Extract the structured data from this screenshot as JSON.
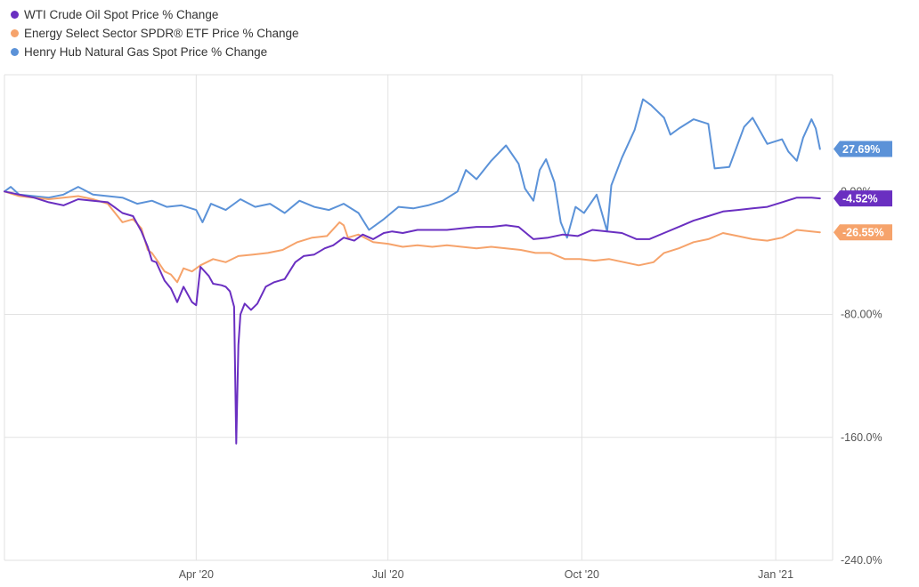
{
  "colors": {
    "wti": "#6a2fc1",
    "energy": "#f6a36b",
    "henry": "#5b92d8",
    "grid": "#e2e2e2",
    "zero_line": "#cfcfcf",
    "axis_text": "#555555"
  },
  "chart_data": {
    "type": "line",
    "title": "",
    "xlabel": "",
    "ylabel": "",
    "x_tick_labels": [
      "Apr '20",
      "Jul '20",
      "Oct '20",
      "Jan '21"
    ],
    "y_tick_labels": [
      "0.00%",
      "-80.00%",
      "-160.0%",
      "-240.0%"
    ],
    "y_ticks": [
      0,
      -80,
      -160,
      -240
    ],
    "ylim": [
      -240,
      76
    ],
    "xlim": [
      "2020-01-01",
      "2021-01-28"
    ],
    "x_ticks": [
      "2020-04-01",
      "2020-07-01",
      "2020-10-01",
      "2021-01-01"
    ],
    "grid": true,
    "legend_position": "top-left",
    "series": [
      {
        "name": "WTI Crude Oil Spot Price % Change",
        "color_key": "wti",
        "end_label": "-4.52%",
        "points": [
          [
            "2020-01-01",
            0
          ],
          [
            "2020-01-08",
            -2
          ],
          [
            "2020-01-15",
            -4
          ],
          [
            "2020-01-22",
            -7
          ],
          [
            "2020-01-29",
            -9
          ],
          [
            "2020-02-05",
            -5
          ],
          [
            "2020-02-12",
            -6
          ],
          [
            "2020-02-19",
            -7
          ],
          [
            "2020-02-26",
            -14
          ],
          [
            "2020-03-02",
            -16
          ],
          [
            "2020-03-06",
            -26
          ],
          [
            "2020-03-09",
            -36
          ],
          [
            "2020-03-11",
            -45
          ],
          [
            "2020-03-13",
            -46
          ],
          [
            "2020-03-17",
            -58
          ],
          [
            "2020-03-20",
            -63
          ],
          [
            "2020-03-23",
            -72
          ],
          [
            "2020-03-26",
            -62
          ],
          [
            "2020-03-30",
            -72
          ],
          [
            "2020-04-01",
            -74
          ],
          [
            "2020-04-03",
            -49
          ],
          [
            "2020-04-07",
            -55
          ],
          [
            "2020-04-09",
            -60
          ],
          [
            "2020-04-13",
            -61
          ],
          [
            "2020-04-15",
            -62
          ],
          [
            "2020-04-17",
            -65
          ],
          [
            "2020-04-19",
            -75
          ],
          [
            "2020-04-20",
            -164
          ],
          [
            "2020-04-21",
            -100
          ],
          [
            "2020-04-22",
            -80
          ],
          [
            "2020-04-24",
            -73
          ],
          [
            "2020-04-27",
            -77
          ],
          [
            "2020-04-30",
            -73
          ],
          [
            "2020-05-04",
            -62
          ],
          [
            "2020-05-08",
            -59
          ],
          [
            "2020-05-13",
            -57
          ],
          [
            "2020-05-18",
            -46
          ],
          [
            "2020-05-22",
            -42
          ],
          [
            "2020-05-27",
            -41
          ],
          [
            "2020-06-01",
            -37
          ],
          [
            "2020-06-05",
            -35
          ],
          [
            "2020-06-10",
            -30
          ],
          [
            "2020-06-15",
            -32
          ],
          [
            "2020-06-19",
            -28
          ],
          [
            "2020-06-24",
            -31
          ],
          [
            "2020-06-29",
            -27
          ],
          [
            "2020-07-03",
            -26
          ],
          [
            "2020-07-08",
            -27
          ],
          [
            "2020-07-15",
            -25
          ],
          [
            "2020-07-22",
            -25
          ],
          [
            "2020-07-29",
            -25
          ],
          [
            "2020-08-05",
            -24
          ],
          [
            "2020-08-12",
            -23
          ],
          [
            "2020-08-19",
            -23
          ],
          [
            "2020-08-26",
            -22
          ],
          [
            "2020-09-01",
            -23
          ],
          [
            "2020-09-08",
            -31
          ],
          [
            "2020-09-15",
            -30
          ],
          [
            "2020-09-22",
            -28
          ],
          [
            "2020-09-29",
            -29
          ],
          [
            "2020-10-06",
            -25
          ],
          [
            "2020-10-13",
            -26
          ],
          [
            "2020-10-20",
            -27
          ],
          [
            "2020-10-27",
            -31
          ],
          [
            "2020-11-02",
            -31
          ],
          [
            "2020-11-09",
            -27
          ],
          [
            "2020-11-16",
            -23
          ],
          [
            "2020-11-23",
            -19
          ],
          [
            "2020-11-30",
            -16
          ],
          [
            "2020-12-07",
            -13
          ],
          [
            "2020-12-14",
            -12
          ],
          [
            "2020-12-21",
            -11
          ],
          [
            "2020-12-28",
            -10
          ],
          [
            "2021-01-04",
            -7
          ],
          [
            "2021-01-11",
            -4
          ],
          [
            "2021-01-18",
            -4
          ],
          [
            "2021-01-22",
            -4.52
          ]
        ]
      },
      {
        "name": "Energy Select Sector SPDR® ETF Price % Change",
        "color_key": "energy",
        "end_label": "-26.55%",
        "points": [
          [
            "2020-01-01",
            0
          ],
          [
            "2020-01-08",
            -3
          ],
          [
            "2020-01-15",
            -4
          ],
          [
            "2020-01-22",
            -5
          ],
          [
            "2020-01-29",
            -4
          ],
          [
            "2020-02-05",
            -3
          ],
          [
            "2020-02-12",
            -5
          ],
          [
            "2020-02-19",
            -8
          ],
          [
            "2020-02-26",
            -20
          ],
          [
            "2020-03-02",
            -18
          ],
          [
            "2020-03-06",
            -24
          ],
          [
            "2020-03-09",
            -38
          ],
          [
            "2020-03-11",
            -40
          ],
          [
            "2020-03-13",
            -44
          ],
          [
            "2020-03-17",
            -52
          ],
          [
            "2020-03-20",
            -54
          ],
          [
            "2020-03-23",
            -59
          ],
          [
            "2020-03-26",
            -50
          ],
          [
            "2020-03-30",
            -52
          ],
          [
            "2020-04-03",
            -48
          ],
          [
            "2020-04-09",
            -44
          ],
          [
            "2020-04-15",
            -46
          ],
          [
            "2020-04-21",
            -42
          ],
          [
            "2020-04-28",
            -41
          ],
          [
            "2020-05-05",
            -40
          ],
          [
            "2020-05-12",
            -38
          ],
          [
            "2020-05-19",
            -33
          ],
          [
            "2020-05-26",
            -30
          ],
          [
            "2020-06-02",
            -29
          ],
          [
            "2020-06-08",
            -20
          ],
          [
            "2020-06-10",
            -22
          ],
          [
            "2020-06-12",
            -30
          ],
          [
            "2020-06-17",
            -28
          ],
          [
            "2020-06-24",
            -33
          ],
          [
            "2020-07-01",
            -34
          ],
          [
            "2020-07-08",
            -36
          ],
          [
            "2020-07-15",
            -35
          ],
          [
            "2020-07-22",
            -36
          ],
          [
            "2020-07-29",
            -35
          ],
          [
            "2020-08-05",
            -36
          ],
          [
            "2020-08-12",
            -37
          ],
          [
            "2020-08-19",
            -36
          ],
          [
            "2020-08-26",
            -37
          ],
          [
            "2020-09-02",
            -38
          ],
          [
            "2020-09-09",
            -40
          ],
          [
            "2020-09-16",
            -40
          ],
          [
            "2020-09-23",
            -44
          ],
          [
            "2020-09-30",
            -44
          ],
          [
            "2020-10-07",
            -45
          ],
          [
            "2020-10-14",
            -44
          ],
          [
            "2020-10-21",
            -46
          ],
          [
            "2020-10-28",
            -48
          ],
          [
            "2020-11-04",
            -46
          ],
          [
            "2020-11-09",
            -40
          ],
          [
            "2020-11-16",
            -37
          ],
          [
            "2020-11-23",
            -33
          ],
          [
            "2020-11-30",
            -31
          ],
          [
            "2020-12-07",
            -27
          ],
          [
            "2020-12-14",
            -29
          ],
          [
            "2020-12-21",
            -31
          ],
          [
            "2020-12-28",
            -32
          ],
          [
            "2021-01-04",
            -30
          ],
          [
            "2021-01-11",
            -25
          ],
          [
            "2021-01-18",
            -26
          ],
          [
            "2021-01-22",
            -26.55
          ]
        ]
      },
      {
        "name": "Henry Hub Natural Gas Spot Price % Change",
        "color_key": "henry",
        "end_label": "27.69%",
        "points": [
          [
            "2020-01-01",
            0
          ],
          [
            "2020-01-04",
            3
          ],
          [
            "2020-01-08",
            -2
          ],
          [
            "2020-01-15",
            -3
          ],
          [
            "2020-01-22",
            -4
          ],
          [
            "2020-01-29",
            -2
          ],
          [
            "2020-02-05",
            3
          ],
          [
            "2020-02-12",
            -2
          ],
          [
            "2020-02-19",
            -3
          ],
          [
            "2020-02-26",
            -4
          ],
          [
            "2020-03-04",
            -8
          ],
          [
            "2020-03-11",
            -6
          ],
          [
            "2020-03-18",
            -10
          ],
          [
            "2020-03-25",
            -9
          ],
          [
            "2020-04-01",
            -12
          ],
          [
            "2020-04-04",
            -20
          ],
          [
            "2020-04-08",
            -8
          ],
          [
            "2020-04-15",
            -12
          ],
          [
            "2020-04-22",
            -5
          ],
          [
            "2020-04-29",
            -10
          ],
          [
            "2020-05-06",
            -8
          ],
          [
            "2020-05-13",
            -14
          ],
          [
            "2020-05-20",
            -6
          ],
          [
            "2020-05-27",
            -10
          ],
          [
            "2020-06-03",
            -12
          ],
          [
            "2020-06-10",
            -8
          ],
          [
            "2020-06-17",
            -14
          ],
          [
            "2020-06-22",
            -25
          ],
          [
            "2020-06-29",
            -18
          ],
          [
            "2020-07-06",
            -10
          ],
          [
            "2020-07-13",
            -11
          ],
          [
            "2020-07-20",
            -9
          ],
          [
            "2020-07-27",
            -6
          ],
          [
            "2020-08-03",
            0
          ],
          [
            "2020-08-07",
            14
          ],
          [
            "2020-08-12",
            8
          ],
          [
            "2020-08-19",
            20
          ],
          [
            "2020-08-26",
            30
          ],
          [
            "2020-09-01",
            18
          ],
          [
            "2020-09-04",
            2
          ],
          [
            "2020-09-08",
            -6
          ],
          [
            "2020-09-11",
            14
          ],
          [
            "2020-09-14",
            21
          ],
          [
            "2020-09-18",
            6
          ],
          [
            "2020-09-21",
            -20
          ],
          [
            "2020-09-24",
            -30
          ],
          [
            "2020-09-28",
            -10
          ],
          [
            "2020-10-02",
            -14
          ],
          [
            "2020-10-08",
            -2
          ],
          [
            "2020-10-13",
            -26
          ],
          [
            "2020-10-15",
            4
          ],
          [
            "2020-10-20",
            22
          ],
          [
            "2020-10-26",
            40
          ],
          [
            "2020-10-30",
            60
          ],
          [
            "2020-11-03",
            56
          ],
          [
            "2020-11-09",
            48
          ],
          [
            "2020-11-12",
            37
          ],
          [
            "2020-11-16",
            41
          ],
          [
            "2020-11-23",
            47
          ],
          [
            "2020-11-30",
            44
          ],
          [
            "2020-12-03",
            15
          ],
          [
            "2020-12-10",
            16
          ],
          [
            "2020-12-17",
            42
          ],
          [
            "2020-12-21",
            48
          ],
          [
            "2020-12-28",
            31
          ],
          [
            "2021-01-04",
            34
          ],
          [
            "2021-01-07",
            26
          ],
          [
            "2021-01-11",
            20
          ],
          [
            "2021-01-14",
            35
          ],
          [
            "2021-01-18",
            47
          ],
          [
            "2021-01-20",
            41
          ],
          [
            "2021-01-22",
            27.69
          ]
        ]
      }
    ]
  }
}
